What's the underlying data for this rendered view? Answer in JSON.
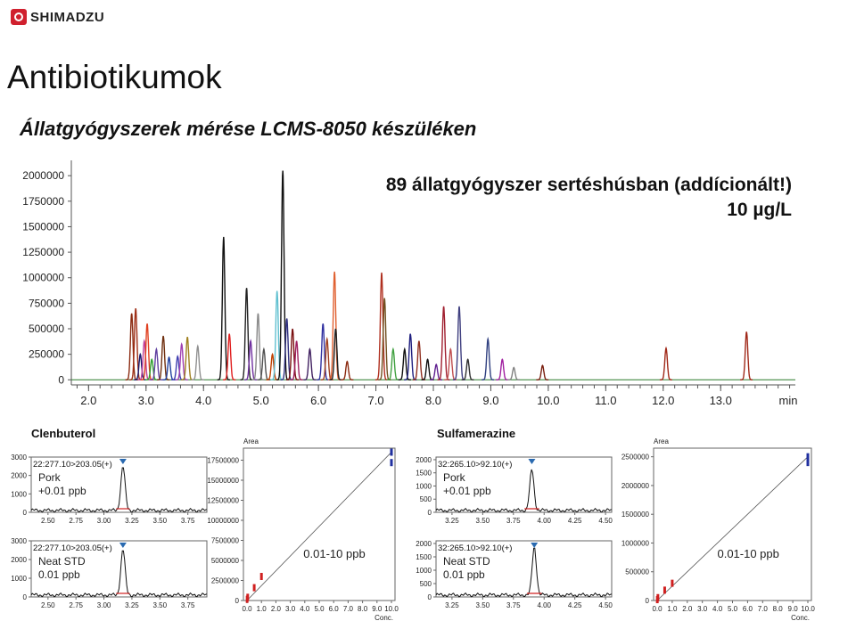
{
  "header": {
    "brand": "SHIMADZU",
    "title": "Antibiotikumok",
    "subtitle": "Állatgyógyszerek mérése LCMS-8050 készüléken"
  },
  "main_chart": {
    "annotation_line1": "89 állatgyógyszer sertéshúsban (addícionált!)",
    "annotation_line2": "10 µg/L"
  },
  "panels": {
    "left_title": "Clenbuterol",
    "right_title": "Sulfamerazine",
    "area_label": "Area",
    "conc_label": "Conc.",
    "range_label": "0.01-10 ppb"
  },
  "chart_data": [
    {
      "type": "line",
      "id": "tic",
      "x_unit": "min",
      "xlim": [
        1.7,
        14.3
      ],
      "ylim": [
        -50000,
        2150000
      ],
      "x_ticks": [
        2.0,
        3.0,
        4.0,
        5.0,
        6.0,
        7.0,
        8.0,
        9.0,
        10.0,
        11.0,
        12.0,
        13.0
      ],
      "y_ticks": [
        0,
        250000,
        500000,
        750000,
        1000000,
        1250000,
        1500000,
        1750000,
        2000000
      ],
      "x_tick_labels": [
        "2.0",
        "3.0",
        "4.0",
        "5.0",
        "6.0",
        "7.0",
        "8.0",
        "9.0",
        "10.0",
        "11.0",
        "12.0",
        "13.0",
        "min"
      ],
      "y_tick_labels": [
        "0",
        "250000",
        "500000",
        "750000",
        "1000000",
        "1250000",
        "1500000",
        "1750000",
        "2000000"
      ],
      "peaks": [
        {
          "rt": 2.75,
          "h": 650000,
          "color": "#8b2a10"
        },
        {
          "rt": 2.82,
          "h": 700000,
          "color": "#a03018"
        },
        {
          "rt": 2.9,
          "h": 250000,
          "color": "#1a1a6e"
        },
        {
          "rt": 2.97,
          "h": 380000,
          "color": "#c0409a"
        },
        {
          "rt": 3.02,
          "h": 550000,
          "color": "#e04020"
        },
        {
          "rt": 3.1,
          "h": 200000,
          "color": "#30a030"
        },
        {
          "rt": 3.18,
          "h": 300000,
          "color": "#6040a0"
        },
        {
          "rt": 3.3,
          "h": 430000,
          "color": "#703010"
        },
        {
          "rt": 3.4,
          "h": 220000,
          "color": "#2040a0"
        },
        {
          "rt": 3.55,
          "h": 230000,
          "color": "#4040b0"
        },
        {
          "rt": 3.62,
          "h": 350000,
          "color": "#a040b0"
        },
        {
          "rt": 3.72,
          "h": 420000,
          "color": "#a08020"
        },
        {
          "rt": 3.9,
          "h": 330000,
          "color": "#909090"
        },
        {
          "rt": 4.35,
          "h": 1400000,
          "color": "#111111"
        },
        {
          "rt": 4.45,
          "h": 450000,
          "color": "#e02020"
        },
        {
          "rt": 4.75,
          "h": 900000,
          "color": "#222222"
        },
        {
          "rt": 4.82,
          "h": 380000,
          "color": "#7030a0"
        },
        {
          "rt": 4.95,
          "h": 650000,
          "color": "#888888"
        },
        {
          "rt": 5.05,
          "h": 300000,
          "color": "#505050"
        },
        {
          "rt": 5.2,
          "h": 250000,
          "color": "#c04000"
        },
        {
          "rt": 5.28,
          "h": 870000,
          "color": "#60c0d0"
        },
        {
          "rt": 5.38,
          "h": 2050000,
          "color": "#111111"
        },
        {
          "rt": 5.45,
          "h": 600000,
          "color": "#303080"
        },
        {
          "rt": 5.55,
          "h": 500000,
          "color": "#7a1010"
        },
        {
          "rt": 5.62,
          "h": 380000,
          "color": "#a02060"
        },
        {
          "rt": 5.85,
          "h": 300000,
          "color": "#402060"
        },
        {
          "rt": 6.08,
          "h": 550000,
          "color": "#3030a0"
        },
        {
          "rt": 6.15,
          "h": 400000,
          "color": "#a04020"
        },
        {
          "rt": 6.28,
          "h": 1060000,
          "color": "#e06030"
        },
        {
          "rt": 6.3,
          "h": 500000,
          "color": "#202020"
        },
        {
          "rt": 6.5,
          "h": 180000,
          "color": "#8b2a10"
        },
        {
          "rt": 7.1,
          "h": 1050000,
          "color": "#b03020"
        },
        {
          "rt": 7.15,
          "h": 800000,
          "color": "#705020"
        },
        {
          "rt": 7.3,
          "h": 300000,
          "color": "#40a040"
        },
        {
          "rt": 7.5,
          "h": 300000,
          "color": "#101010"
        },
        {
          "rt": 7.6,
          "h": 450000,
          "color": "#202080"
        },
        {
          "rt": 7.75,
          "h": 380000,
          "color": "#903020"
        },
        {
          "rt": 7.9,
          "h": 200000,
          "color": "#111111"
        },
        {
          "rt": 8.05,
          "h": 150000,
          "color": "#602090"
        },
        {
          "rt": 8.18,
          "h": 720000,
          "color": "#a02030"
        },
        {
          "rt": 8.3,
          "h": 300000,
          "color": "#c05050"
        },
        {
          "rt": 8.45,
          "h": 720000,
          "color": "#404080"
        },
        {
          "rt": 8.6,
          "h": 200000,
          "color": "#303030"
        },
        {
          "rt": 8.95,
          "h": 400000,
          "color": "#304080"
        },
        {
          "rt": 9.2,
          "h": 200000,
          "color": "#a020a0"
        },
        {
          "rt": 9.4,
          "h": 120000,
          "color": "#808080"
        },
        {
          "rt": 9.9,
          "h": 140000,
          "color": "#7a2010"
        },
        {
          "rt": 12.05,
          "h": 310000,
          "color": "#a02818"
        },
        {
          "rt": 13.45,
          "h": 470000,
          "color": "#a02818"
        }
      ]
    },
    {
      "type": "line",
      "id": "clen-pork",
      "compound": "Clenbuterol",
      "label": "22:277.10>203.05(+)",
      "sample": "Pork",
      "level": "+0.01 ppb",
      "xlim": [
        2.35,
        3.92
      ],
      "ylim": [
        0,
        3000
      ],
      "x_tick_labels": [
        "2.50",
        "2.75",
        "3.00",
        "3.25",
        "3.50",
        "3.75"
      ],
      "y_tick_labels": [
        "0",
        "1000",
        "2000",
        "3000"
      ],
      "peak_rt": 3.17,
      "peak_height": 2400
    },
    {
      "type": "line",
      "id": "clen-std",
      "compound": "Clenbuterol",
      "label": "22:277.10>203.05(+)",
      "sample": "Neat STD",
      "level": "0.01 ppb",
      "xlim": [
        2.35,
        3.92
      ],
      "ylim": [
        0,
        3000
      ],
      "x_tick_labels": [
        "2.50",
        "2.75",
        "3.00",
        "3.25",
        "3.50",
        "3.75"
      ],
      "y_tick_labels": [
        "0",
        "1000",
        "2000",
        "3000"
      ],
      "peak_rt": 3.17,
      "peak_height": 2450
    },
    {
      "type": "scatter",
      "id": "clen-cal",
      "xlabel": "Conc.",
      "ylabel": "Area",
      "xlim": [
        0,
        10
      ],
      "ylim": [
        0,
        19000000
      ],
      "y_tick_labels": [
        "0",
        "2500000",
        "5000000",
        "7500000",
        "10000000",
        "12500000",
        "15000000",
        "17500000"
      ],
      "x_tick_labels": [
        "0.0",
        "1.0",
        "2.0",
        "3.0",
        "4.0",
        "5.0",
        "6.0",
        "7.0",
        "8.0",
        "9.0",
        "10.0"
      ],
      "points": [
        [
          0.01,
          150000
        ],
        [
          0.05,
          400000
        ],
        [
          0.5,
          1600000
        ],
        [
          1.0,
          3000000
        ],
        [
          10.0,
          18500000
        ],
        [
          10.0,
          17200000
        ]
      ],
      "range": "0.01-10 ppb"
    },
    {
      "type": "line",
      "id": "sulfa-pork",
      "compound": "Sulfamerazine",
      "label": "32:265.10>92.10(+)",
      "sample": "Pork",
      "level": "+0.01 ppb",
      "xlim": [
        3.12,
        4.55
      ],
      "ylim": [
        0,
        2100
      ],
      "x_tick_labels": [
        "3.25",
        "3.50",
        "3.75",
        "4.00",
        "4.25",
        "4.50"
      ],
      "y_tick_labels": [
        "0",
        "500",
        "1000",
        "1500",
        "2000"
      ],
      "peak_rt": 3.9,
      "peak_height": 1550
    },
    {
      "type": "line",
      "id": "sulfa-std",
      "compound": "Sulfamerazine",
      "label": "32:265.10>92.10(+)",
      "sample": "Neat STD",
      "level": "0.01 ppb",
      "xlim": [
        3.12,
        4.55
      ],
      "ylim": [
        0,
        2100
      ],
      "x_tick_labels": [
        "3.25",
        "3.50",
        "3.75",
        "4.00",
        "4.25",
        "4.50"
      ],
      "y_tick_labels": [
        "0",
        "500",
        "1000",
        "1500",
        "2000"
      ],
      "peak_rt": 3.92,
      "peak_height": 1800
    },
    {
      "type": "scatter",
      "id": "sulfa-cal",
      "xlabel": "Conc.",
      "ylabel": "Area",
      "xlim": [
        0,
        10
      ],
      "ylim": [
        0,
        2650000
      ],
      "y_tick_labels": [
        "0",
        "500000",
        "1000000",
        "1500000",
        "2000000",
        "2500000"
      ],
      "x_tick_labels": [
        "0.0",
        "1.0",
        "2.0",
        "3.0",
        "4.0",
        "5.0",
        "6.0",
        "7.0",
        "8.0",
        "9.0",
        "10.0"
      ],
      "points": [
        [
          0.01,
          15000
        ],
        [
          0.05,
          50000
        ],
        [
          0.5,
          180000
        ],
        [
          1.0,
          300000
        ],
        [
          10.0,
          2500000
        ],
        [
          10.0,
          2400000
        ]
      ],
      "range": "0.01-10 ppb"
    }
  ]
}
